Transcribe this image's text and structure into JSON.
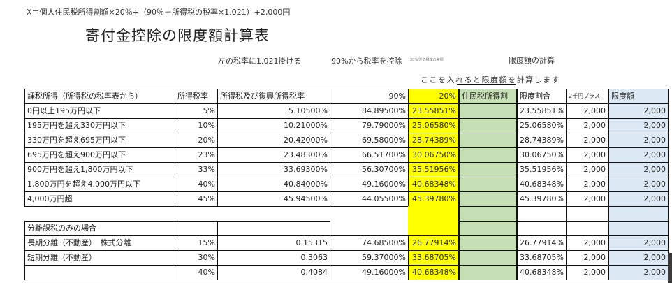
{
  "formula": "X＝個人住民税所得割額×20％÷（90％－所得税の税率×1.021）+2,000円",
  "title": "寄付金控除の限度額計算表",
  "notes": {
    "multiply": "左の税率に1.021掛ける",
    "subtract": "90%から税率を控除",
    "ratio_tiny": "20%/左の税率の差額",
    "limit_calc": "限度額の計算",
    "enter_hint": "ここを入れると限度額を計算します"
  },
  "colors": {
    "yellow": "#ffff00",
    "green": "#c6dfb4",
    "blue": "#dce9f5"
  },
  "table": {
    "headers": [
      "課税所得（所得税の税率表から）",
      "所得税率",
      "所得税及び復興所得税率",
      "90%",
      "20%",
      "住民税所得割",
      "限度割合",
      "2千円プラス",
      "限度額"
    ],
    "rows": [
      {
        "income": "0円以上195万円以下",
        "rate": "5%",
        "combined": "5.10500%",
        "p90": "84.89500%",
        "p20": "23.55851%",
        "resident": "",
        "ratio": "23.55851%",
        "plus": "2,000",
        "limit": "2,000"
      },
      {
        "income": "195万円を超え330万円以下",
        "rate": "10%",
        "combined": "10.21000%",
        "p90": "79.79000%",
        "p20": "25.06580%",
        "resident": "",
        "ratio": "25.06580%",
        "plus": "2,000",
        "limit": "2,000"
      },
      {
        "income": "330万円を超え695万円以下",
        "rate": "20%",
        "combined": "20.42000%",
        "p90": "69.58000%",
        "p20": "28.74389%",
        "resident": "",
        "ratio": "28.74389%",
        "plus": "2,000",
        "limit": "2,000"
      },
      {
        "income": "695万円を超え900万円以下",
        "rate": "23%",
        "combined": "23.48300%",
        "p90": "66.51700%",
        "p20": "30.06750%",
        "resident": "",
        "ratio": "30.06750%",
        "plus": "2,000",
        "limit": "2,000"
      },
      {
        "income": "900万円を超え1,800万円以下",
        "rate": "33%",
        "combined": "33.69300%",
        "p90": "56.30700%",
        "p20": "35.51956%",
        "resident": "",
        "ratio": "35.51956%",
        "plus": "2,000",
        "limit": "2,000"
      },
      {
        "income": "1,800万円を超え4,000万円以下",
        "rate": "40%",
        "combined": "40.84000%",
        "p90": "49.16000%",
        "p20": "40.68348%",
        "resident": "",
        "ratio": "40.68348%",
        "plus": "2,000",
        "limit": "2,000"
      },
      {
        "income": "4,000万円超",
        "rate": "45%",
        "combined": "45.94500%",
        "p90": "44.05500%",
        "p20": "45.39780%",
        "resident": "",
        "ratio": "45.39780%",
        "plus": "2,000",
        "limit": "2,000"
      }
    ],
    "separate_header": "分離課税のみの場合",
    "separate_rows": [
      {
        "income": "長期分離（不動産）　株式分離",
        "rate": "15%",
        "combined": "0.15315",
        "p90": "74.68500%",
        "p20": "26.77914%",
        "resident": "",
        "ratio": "26.77914%",
        "plus": "2,000",
        "limit": "2,000"
      },
      {
        "income": "短期分離（不動産）",
        "rate": "30%",
        "combined": "0.3063",
        "p90": "59.37000%",
        "p20": "33.68705%",
        "resident": "",
        "ratio": "33.68705%",
        "plus": "2,000",
        "limit": "2,000"
      },
      {
        "income": "",
        "rate": "40%",
        "combined": "0.4084",
        "p90": "49.16000%",
        "p20": "40.68348%",
        "resident": "",
        "ratio": "40.68348%",
        "plus": "2,000",
        "limit": "2,000"
      }
    ]
  }
}
